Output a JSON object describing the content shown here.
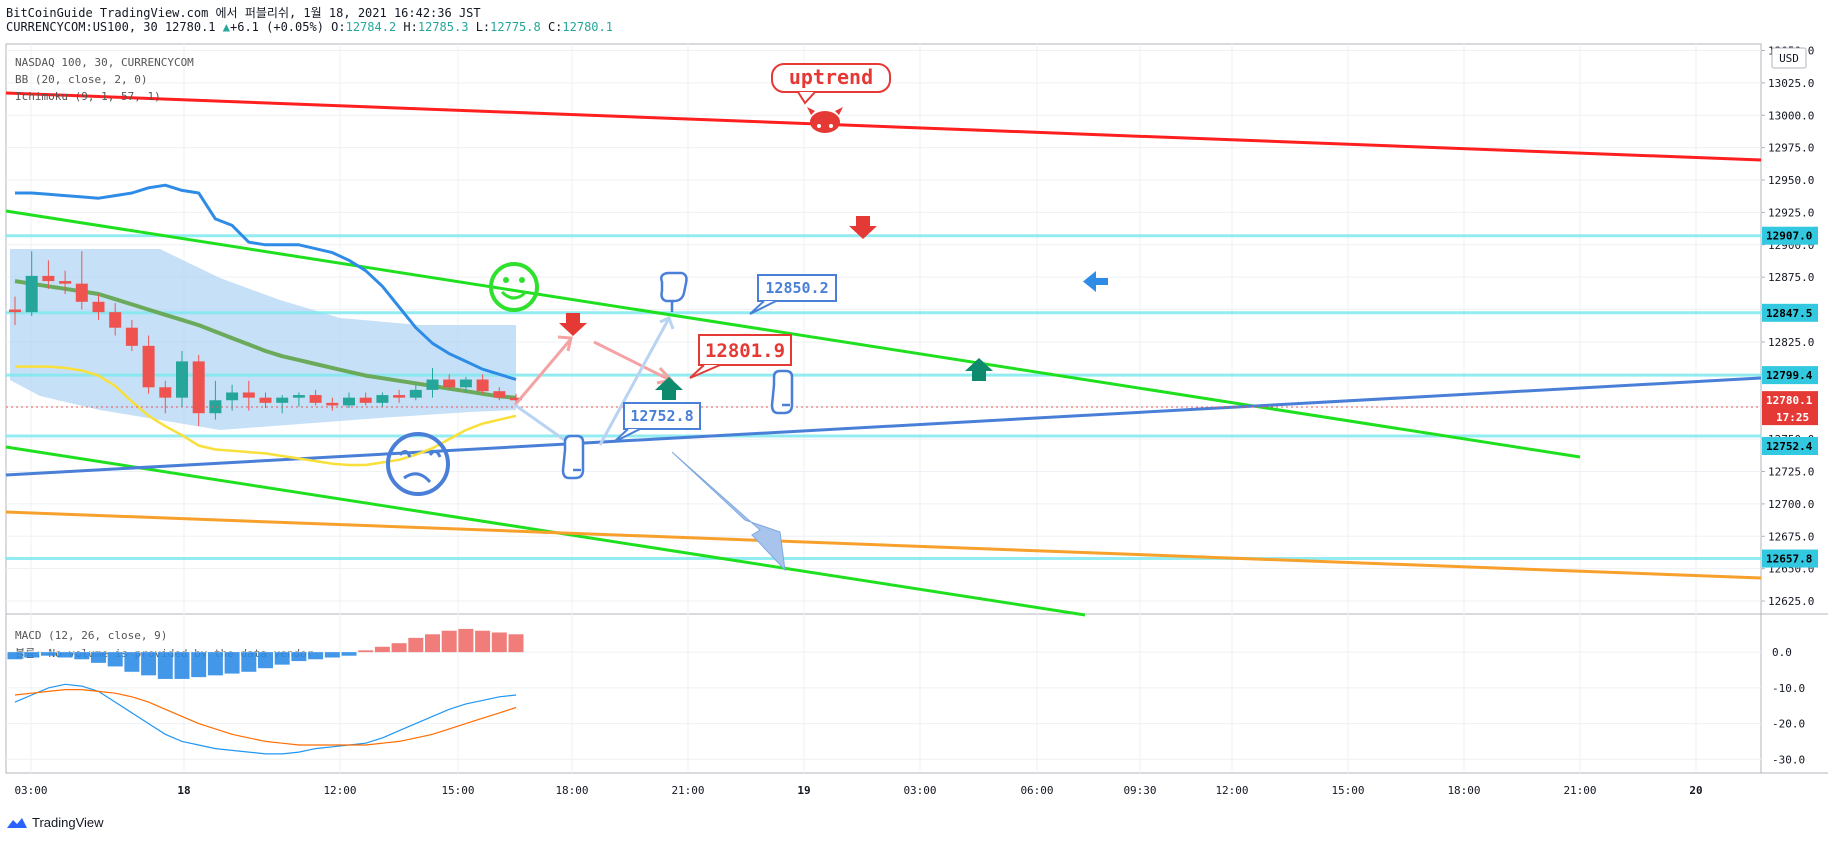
{
  "header": {
    "line1": "BitCoinGuide TradingView.com 에서 퍼블리쉬, 1월 18, 2021 16:42:36 JST",
    "symbol": "CURRENCYCOM:US100, 30",
    "last": "12780.1",
    "change": "+6.1 (+0.05%)",
    "o_label": "O:",
    "o": "12784.2",
    "h_label": "H:",
    "h": "12785.3",
    "l_label": "L:",
    "l": "12775.8",
    "c_label": "C:",
    "c": "12780.1"
  },
  "legend": {
    "symbol": "NASDAQ 100, 30, CURRENCYCOM",
    "bb": "BB (20, close, 2, 0)",
    "ichimoku": "Ichimoku (9, 1, 57, 1)",
    "macd": "MACD (12, 26, close, 9)",
    "volume_note": "볼륨: No volume is provided by the data vendor"
  },
  "currency": "USD",
  "brand": "TradingView",
  "annotations": {
    "uptrend": "uptrend",
    "label_12850": "12850.2",
    "label_12801": "12801.9",
    "label_12752": "12752.8"
  },
  "price_tags": {
    "p12907": "12907.0",
    "p12847": "12847.5",
    "p12799": "12799.4",
    "p12780": "12780.1",
    "countdown": "17:25",
    "p12752": "12752.4",
    "p12657": "12657.8"
  },
  "colors": {
    "up": "#26a69a",
    "down": "#ef5350",
    "red_line": "#ff1f1f",
    "green_line": "#1fe01f",
    "blue_line": "#4a7fd8",
    "orange_line": "#f7a02b",
    "cyan_line": "#7fe9ef",
    "cloud": "#a8cff5",
    "bb_mid": "#6aaa5a",
    "bb_low": "#f8df3a",
    "bb_up": "#2f8ce6",
    "macd_line": "#2196f3",
    "signal_line": "#ff6d00",
    "tag_cyan": "#32c8e0",
    "tag_red": "#e53935"
  },
  "chart_data": {
    "type": "candlestick",
    "y_axis": {
      "range": [
        12615,
        13055
      ],
      "ticks": [
        "13050.0",
        "13025.0",
        "13000.0",
        "12975.0",
        "12950.0",
        "12925.0",
        "12900.0",
        "12875.0",
        "12850.0",
        "12825.0",
        "12800.0",
        "12775.0",
        "12750.0",
        "12725.0",
        "12700.0",
        "12675.0",
        "12650.0",
        "12625.0"
      ]
    },
    "x_axis": {
      "ticks": [
        "03:00",
        "18",
        "12:00",
        "15:00",
        "18:00",
        "21:00",
        "19",
        "03:00",
        "06:00",
        "09:30",
        "12:00",
        "15:00",
        "18:00",
        "21:00",
        "20"
      ]
    },
    "macd_axis": {
      "range": [
        -33,
        9
      ],
      "ticks": [
        "0.0",
        "-10.0",
        "-20.0",
        "-30.0"
      ]
    },
    "candles": [
      [
        12850,
        12860,
        12838,
        12848
      ],
      [
        12848,
        12895,
        12845,
        12876
      ],
      [
        12876,
        12888,
        12866,
        12872
      ],
      [
        12872,
        12880,
        12862,
        12870
      ],
      [
        12870,
        12895,
        12850,
        12856
      ],
      [
        12856,
        12862,
        12842,
        12848
      ],
      [
        12848,
        12855,
        12830,
        12836
      ],
      [
        12836,
        12842,
        12818,
        12822
      ],
      [
        12822,
        12830,
        12785,
        12790
      ],
      [
        12790,
        12795,
        12770,
        12782
      ],
      [
        12782,
        12818,
        12775,
        12810
      ],
      [
        12810,
        12815,
        12760,
        12770
      ],
      [
        12770,
        12795,
        12765,
        12780
      ],
      [
        12780,
        12792,
        12772,
        12786
      ],
      [
        12786,
        12795,
        12772,
        12782
      ],
      [
        12782,
        12786,
        12774,
        12778
      ],
      [
        12778,
        12784,
        12770,
        12782
      ],
      [
        12782,
        12786,
        12775,
        12784
      ],
      [
        12784,
        12788,
        12776,
        12778
      ],
      [
        12778,
        12782,
        12772,
        12776
      ],
      [
        12776,
        12786,
        12774,
        12782
      ],
      [
        12782,
        12786,
        12776,
        12778
      ],
      [
        12778,
        12786,
        12775,
        12784
      ],
      [
        12784,
        12788,
        12778,
        12782
      ],
      [
        12782,
        12792,
        12780,
        12788
      ],
      [
        12788,
        12805,
        12782,
        12796
      ],
      [
        12796,
        12800,
        12788,
        12790
      ],
      [
        12790,
        12798,
        12786,
        12796
      ],
      [
        12796,
        12800,
        12785,
        12787
      ],
      [
        12787,
        12790,
        12780,
        12782
      ],
      [
        12782,
        12785,
        12776,
        12780
      ]
    ],
    "bb_upper": [
      12940,
      12940,
      12939,
      12938,
      12937,
      12936,
      12938,
      12940,
      12944,
      12946,
      12942,
      12940,
      12920,
      12915,
      12902,
      12900,
      12900,
      12900,
      12897,
      12894,
      12888,
      12880,
      12868,
      12852,
      12836,
      12824,
      12816,
      12810,
      12804,
      12800,
      12796
    ],
    "bb_middle": [
      12872,
      12870,
      12868,
      12866,
      12864,
      12862,
      12858,
      12854,
      12850,
      12846,
      12842,
      12838,
      12833,
      12828,
      12823,
      12818,
      12814,
      12811,
      12808,
      12805,
      12802,
      12799,
      12797,
      12795,
      12793,
      12791,
      12789,
      12787,
      12785,
      12783,
      12782
    ],
    "bb_lower": [
      12806,
      12806,
      12806,
      12805,
      12803,
      12799,
      12791,
      12779,
      12768,
      12760,
      12753,
      12745,
      12742,
      12741,
      12740,
      12739,
      12737,
      12735,
      12733,
      12731,
      12730,
      12730,
      12732,
      12734,
      12738,
      12743,
      12750,
      12757,
      12762,
      12765,
      12768
    ],
    "macd_hist": [
      -2,
      -1.5,
      -1,
      -1.5,
      -2,
      -3,
      -4,
      -5.5,
      -6.5,
      -7.5,
      -7.5,
      -7,
      -6.5,
      -6,
      -5.5,
      -4.5,
      -3.5,
      -2.5,
      -2,
      -1.5,
      -1,
      0.5,
      1.5,
      2.5,
      4,
      5,
      6,
      6.5,
      6,
      5.5,
      5
    ],
    "macd_line": [
      -14,
      -12,
      -10,
      -9,
      -9.5,
      -11,
      -14,
      -17,
      -20,
      -23,
      -25,
      -26,
      -27,
      -27.5,
      -28,
      -28.5,
      -28.5,
      -28,
      -27,
      -26.5,
      -26,
      -25.5,
      -24,
      -22,
      -20,
      -18,
      -16,
      -14.5,
      -13.5,
      -12.5,
      -12
    ],
    "signal_line": [
      -12,
      -11.5,
      -11,
      -10.5,
      -10.5,
      -11,
      -11.5,
      -12.5,
      -14,
      -16,
      -18,
      -20,
      -21.5,
      -23,
      -24,
      -25,
      -25.5,
      -26,
      -26,
      -26,
      -26,
      -26,
      -25.5,
      -25,
      -24,
      -23,
      -21.5,
      -20,
      -18.5,
      -17,
      -15.5
    ]
  }
}
